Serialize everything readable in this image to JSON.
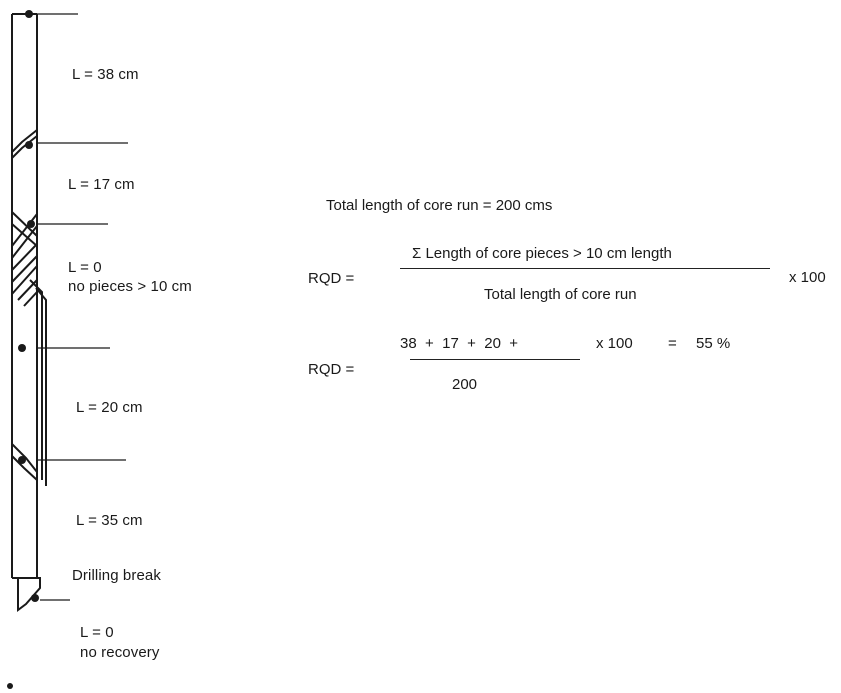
{
  "core_log": {
    "segments": [
      {
        "length_label": "L = 38 cm"
      },
      {
        "length_label": "L = 17 cm"
      },
      {
        "length_label": "L = 0",
        "note": "no pieces > 10 cm"
      },
      {
        "length_label": "L = 20 cm"
      },
      {
        "length_label": "L = 35 cm"
      }
    ],
    "drilling_break_label": "Drilling break",
    "final": {
      "length_label": "L = 0",
      "note": "no recovery"
    }
  },
  "calculation": {
    "total_run_text": "Total length of core run = 200 cms",
    "rqd_label": "RQD =",
    "definition": {
      "numerator": "Σ Length of core pieces > 10 cm length",
      "denominator": "Total length of core run",
      "multiplier": "x 100"
    },
    "worked": {
      "numerator": "38  +  17  +  20  +",
      "denominator": "200",
      "multiplier": "x 100",
      "equals": "=",
      "result": "55 %"
    }
  }
}
